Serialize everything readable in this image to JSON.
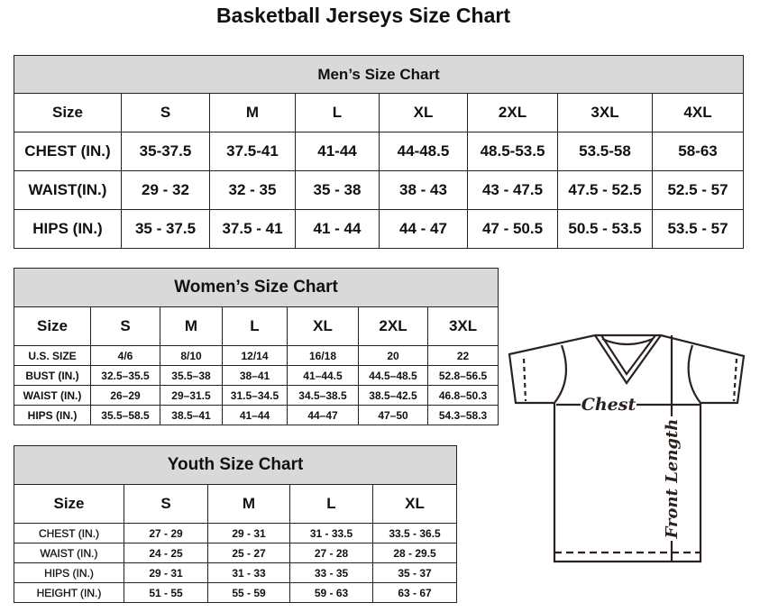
{
  "title": "Basketball Jerseys Size Chart",
  "men": {
    "title": "Men’s Size Chart",
    "rows": [
      [
        "Size",
        "S",
        "M",
        "L",
        "XL",
        "2XL",
        "3XL",
        "4XL"
      ],
      [
        "CHEST (IN.)",
        "35-37.5",
        "37.5-41",
        "41-44",
        "44-48.5",
        "48.5-53.5",
        "53.5-58",
        "58-63"
      ],
      [
        "WAIST(IN.)",
        "29 - 32",
        "32 - 35",
        "35 - 38",
        "38 - 43",
        "43 - 47.5",
        "47.5 - 52.5",
        "52.5 - 57"
      ],
      [
        "HIPS (IN.)",
        "35 - 37.5",
        "37.5 - 41",
        "41 - 44",
        "44 - 47",
        "47 - 50.5",
        "50.5 - 53.5",
        "53.5 - 57"
      ]
    ]
  },
  "women": {
    "title": "Women’s Size Chart",
    "rows": [
      [
        "Size",
        "S",
        "M",
        "L",
        "XL",
        "2XL",
        "3XL"
      ],
      [
        "U.S. SIZE",
        "4/6",
        "8/10",
        "12/14",
        "16/18",
        "20",
        "22"
      ],
      [
        "BUST (IN.)",
        "32.5–35.5",
        "35.5–38",
        "38–41",
        "41–44.5",
        "44.5–48.5",
        "52.8–56.5"
      ],
      [
        "WAIST (IN.)",
        "26–29",
        "29–31.5",
        "31.5–34.5",
        "34.5–38.5",
        "38.5–42.5",
        "46.8–50.3"
      ],
      [
        "HIPS (IN.)",
        "35.5–58.5",
        "38.5–41",
        "41–44",
        "44–47",
        "47–50",
        "54.3–58.3"
      ]
    ]
  },
  "youth": {
    "title": "Youth Size Chart",
    "rows": [
      [
        "Size",
        "S",
        "M",
        "L",
        "XL"
      ],
      [
        "CHEST (IN.)",
        "27 - 29",
        "29 - 31",
        "31 - 33.5",
        "33.5 - 36.5"
      ],
      [
        "WAIST (IN.)",
        "24 - 25",
        "25 - 27",
        "27 - 28",
        "28 - 29.5"
      ],
      [
        "HIPS (IN.)",
        "29 - 31",
        "31 - 33",
        "33 - 35",
        "35 - 37"
      ],
      [
        "HEIGHT (IN.)",
        "51 - 55",
        "55 - 59",
        "59 - 63",
        "63 - 67"
      ]
    ]
  },
  "diagram": {
    "chest_label": "Chest",
    "length_label": "Front Length"
  }
}
